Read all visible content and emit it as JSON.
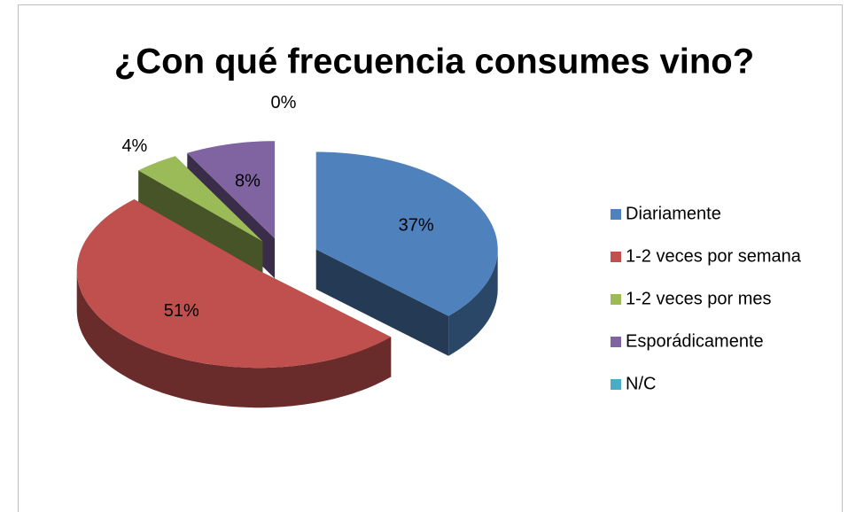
{
  "chart_data": {
    "type": "pie",
    "title": "¿Con qué frecuencia consumes vino?",
    "categories": [
      "Diariamente",
      "1-2 veces por semana",
      "1-2 veces por mes",
      "Esporádicamente",
      "N/C"
    ],
    "values": [
      37,
      51,
      4,
      8,
      0
    ],
    "value_labels": [
      "37%",
      "51%",
      "4%",
      "8%",
      "0%"
    ],
    "colors": [
      "#4f81bd",
      "#c0504d",
      "#9bbb59",
      "#8064a2",
      "#4bacc6"
    ],
    "legend": "right"
  }
}
